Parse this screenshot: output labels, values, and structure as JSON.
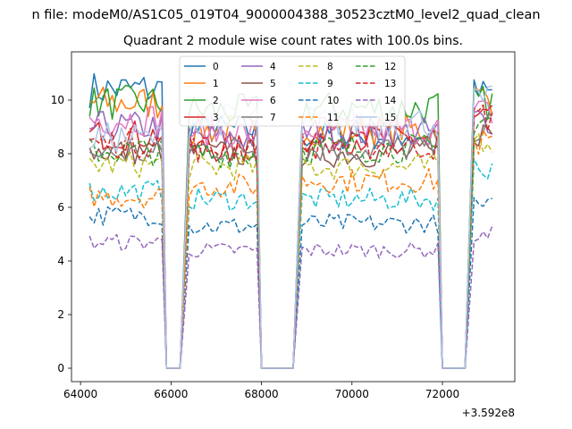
{
  "figure": {
    "suptitle": "n file: modeM0/AS1C05_019T04_9000004388_30523cztM0_level2_quad_clean"
  },
  "chart_data": {
    "type": "line",
    "title": "Quadrant 2 module wise count rates with 100.0s bins.",
    "xlabel": "",
    "ylabel": "",
    "x_offset_label": "+3.592e8",
    "xlim": [
      63800,
      73600
    ],
    "ylim": [
      -0.5,
      11.8
    ],
    "x_ticks": [
      64000,
      66000,
      68000,
      70000,
      72000
    ],
    "x_tick_labels": [
      "64000",
      "66000",
      "68000",
      "70000",
      "72000"
    ],
    "y_ticks": [
      0,
      2,
      4,
      6,
      8,
      10
    ],
    "y_tick_labels": [
      "0",
      "2",
      "4",
      "6",
      "8",
      "10"
    ],
    "grid": false,
    "legend": {
      "placement": "upper center",
      "columns": 4
    },
    "time_segments": [
      {
        "start": 64200,
        "end": 65800,
        "idle_end": 66300
      },
      {
        "start": 66400,
        "end": 67900,
        "idle_end": 68800
      },
      {
        "start": 68900,
        "end": 71900,
        "idle_end": 72600
      },
      {
        "start": 72700,
        "end": 73100,
        "idle_end": 73100
      }
    ],
    "series": [
      {
        "name": "0",
        "color": "#1f77b4",
        "dashed": false,
        "levels": [
          10.4,
          8.9,
          8.7,
          10.2
        ]
      },
      {
        "name": "1",
        "color": "#ff7f0e",
        "dashed": false,
        "levels": [
          9.9,
          8.9,
          8.9,
          10.1
        ]
      },
      {
        "name": "2",
        "color": "#2ca02c",
        "dashed": false,
        "levels": [
          9.9,
          9.6,
          9.7,
          9.9
        ]
      },
      {
        "name": "3",
        "color": "#d62728",
        "dashed": false,
        "levels": [
          8.7,
          8.2,
          8.6,
          9.2
        ]
      },
      {
        "name": "4",
        "color": "#9467bd",
        "dashed": false,
        "levels": [
          9.0,
          8.6,
          8.8,
          9.3
        ]
      },
      {
        "name": "5",
        "color": "#8c564b",
        "dashed": false,
        "levels": [
          8.1,
          8.0,
          8.0,
          8.8
        ]
      },
      {
        "name": "6",
        "color": "#e377c2",
        "dashed": false,
        "levels": [
          9.3,
          8.8,
          8.9,
          9.5
        ]
      },
      {
        "name": "7",
        "color": "#7f7f7f",
        "dashed": false,
        "levels": [
          8.0,
          8.2,
          8.2,
          9.0
        ]
      },
      {
        "name": "8",
        "color": "#bcbd22",
        "dashed": true,
        "levels": [
          7.6,
          7.5,
          7.5,
          8.6
        ]
      },
      {
        "name": "9",
        "color": "#17becf",
        "dashed": true,
        "levels": [
          6.6,
          6.3,
          6.3,
          7.5
        ]
      },
      {
        "name": "10",
        "color": "#1f77b4",
        "dashed": true,
        "levels": [
          5.7,
          5.3,
          5.4,
          6.0
        ]
      },
      {
        "name": "11",
        "color": "#ff7f0e",
        "dashed": true,
        "levels": [
          6.4,
          6.8,
          7.0,
          8.4
        ]
      },
      {
        "name": "12",
        "color": "#2ca02c",
        "dashed": true,
        "levels": [
          8.1,
          8.0,
          8.2,
          9.3
        ]
      },
      {
        "name": "13",
        "color": "#d62728",
        "dashed": true,
        "levels": [
          8.4,
          8.2,
          8.3,
          9.4
        ]
      },
      {
        "name": "14",
        "color": "#9467bd",
        "dashed": true,
        "levels": [
          4.7,
          4.4,
          4.4,
          5.0
        ]
      },
      {
        "name": "15",
        "color": "#aec7e8",
        "dashed": false,
        "levels": [
          8.6,
          9.3,
          9.2,
          9.9
        ]
      }
    ]
  }
}
